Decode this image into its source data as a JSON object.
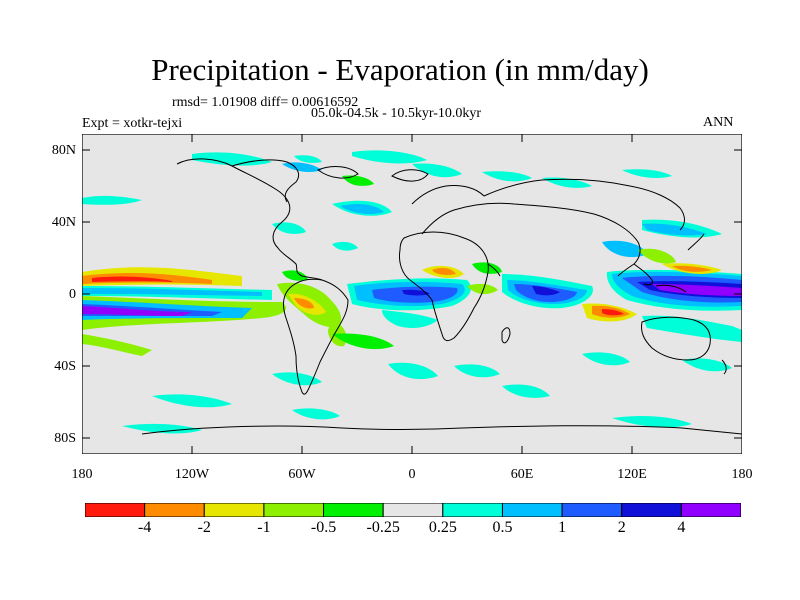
{
  "title": "Precipitation - Evaporation (in mm/day)",
  "stats": "rmsd= 1.01908 diff= 0.00616592",
  "period": "05.0k-04.5k - 10.5kyr-10.0kyr",
  "experiment": "Expt = xotkr-tejxi",
  "season": "ANN",
  "lat_labels": [
    "80N",
    "40N",
    "0",
    "40S",
    "80S"
  ],
  "lon_labels": [
    "180",
    "120W",
    "60W",
    "0",
    "60E",
    "120E",
    "180"
  ],
  "colorbar": {
    "labels": [
      "-4",
      "-2",
      "-1",
      "-0.5",
      "-0.25",
      "0.25",
      "0.5",
      "1",
      "2",
      "4"
    ],
    "colors": [
      "#ff1a0d",
      "#ff8c00",
      "#e6e600",
      "#8cf000",
      "#00f000",
      "#e6e6e6",
      "#00ffd9",
      "#00bfff",
      "#1f5cff",
      "#1010d9",
      "#9100ff"
    ]
  },
  "colors": {
    "ocean_land_background": "#e6e6e6",
    "coastline": "#000000"
  }
}
